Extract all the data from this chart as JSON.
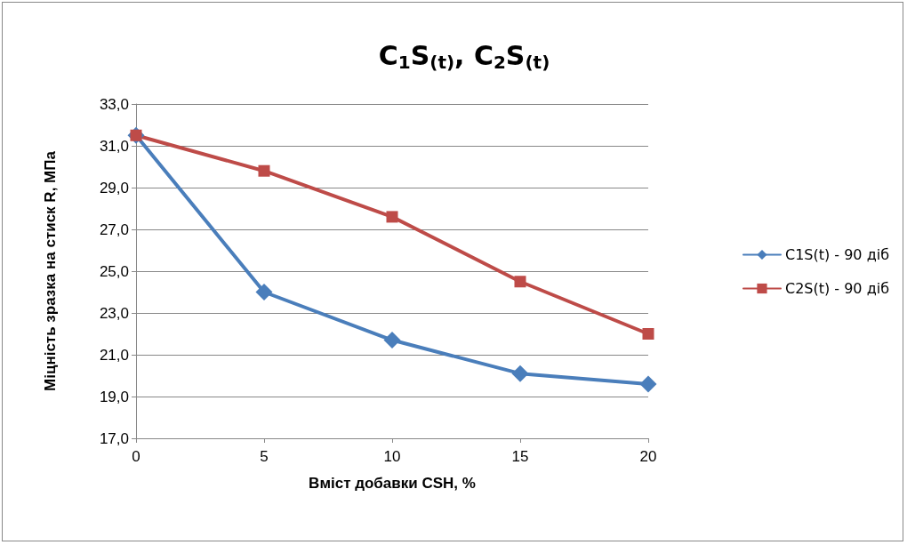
{
  "chart_data": {
    "type": "line",
    "title": "C$_{1}$S$_{(t)}$, C$_{2}$S$_{(t)}$",
    "xlabel": "Вміст добавки CSH, %",
    "ylabel": "Міцність зразка на стиск R, МПа",
    "x": [
      0,
      5,
      10,
      15,
      20
    ],
    "series": [
      {
        "name": "C1S(t) - 90 діб",
        "color": "#4a7ebb",
        "marker": "diamond",
        "values": [
          31.5,
          24.0,
          21.7,
          20.1,
          19.6
        ]
      },
      {
        "name": "C2S(t) - 90 діб",
        "color": "#be4b48",
        "marker": "square",
        "values": [
          31.5,
          29.8,
          27.6,
          24.5,
          22.0
        ]
      }
    ],
    "xlim": [
      0,
      20
    ],
    "xticks": [
      0,
      5,
      10,
      15,
      20
    ],
    "ylim": [
      17,
      33
    ],
    "yticks": [
      {
        "value": 17,
        "label": "17,0"
      },
      {
        "value": 19,
        "label": "19,0"
      },
      {
        "value": 21,
        "label": "21,0"
      },
      {
        "value": 23,
        "label": "23,0"
      },
      {
        "value": 25,
        "label": "25,0"
      },
      {
        "value": 27,
        "label": "27,0"
      },
      {
        "value": 29,
        "label": "29,0"
      },
      {
        "value": 31,
        "label": "31,0"
      },
      {
        "value": 33,
        "label": "33,0"
      }
    ],
    "grid": "y",
    "legend": "right",
    "line_style": "solid"
  }
}
